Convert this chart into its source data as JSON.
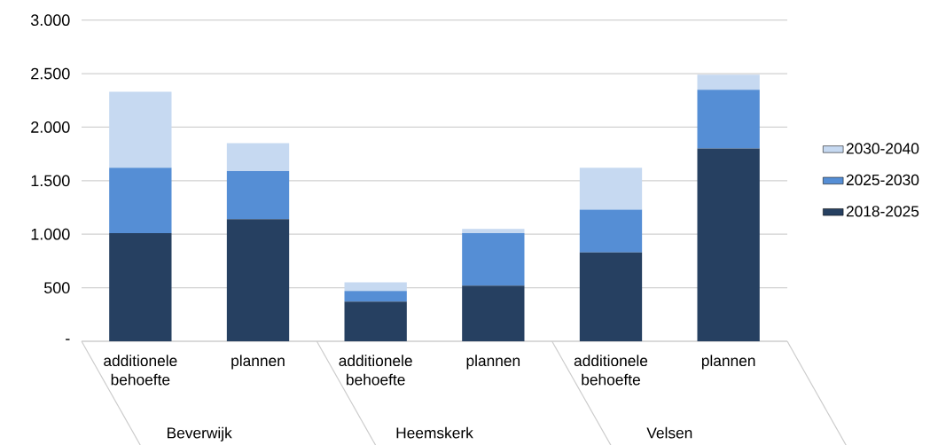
{
  "chart_data": {
    "type": "bar",
    "stacked": true,
    "categories": [
      "additionele behoefte",
      "plannen",
      "additionele behoefte",
      "plannen",
      "additionele behoefte",
      "plannen"
    ],
    "annotations": [
      "Beverwijk",
      "Heemskerk",
      "Velsen"
    ],
    "series": [
      {
        "name": "2018-2025",
        "color": "#264061",
        "values": [
          1010,
          1140,
          370,
          520,
          830,
          1800
        ]
      },
      {
        "name": "2025-2030",
        "color": "#558ed5",
        "values": [
          610,
          450,
          100,
          490,
          400,
          550
        ]
      },
      {
        "name": "2030-2040",
        "color": "#c6d9f1",
        "values": [
          710,
          260,
          80,
          40,
          390,
          140
        ]
      }
    ],
    "ylim": [
      0,
      3000
    ],
    "yticks": [
      {
        "value": 0,
        "label": "-"
      },
      {
        "value": 500,
        "label": "500"
      },
      {
        "value": 1000,
        "label": "1.000"
      },
      {
        "value": 1500,
        "label": "1.500"
      },
      {
        "value": 2000,
        "label": "2.000"
      },
      {
        "value": 2500,
        "label": "2.500"
      },
      {
        "value": 3000,
        "label": "3.000"
      }
    ],
    "grid": "y",
    "legend": "right"
  }
}
